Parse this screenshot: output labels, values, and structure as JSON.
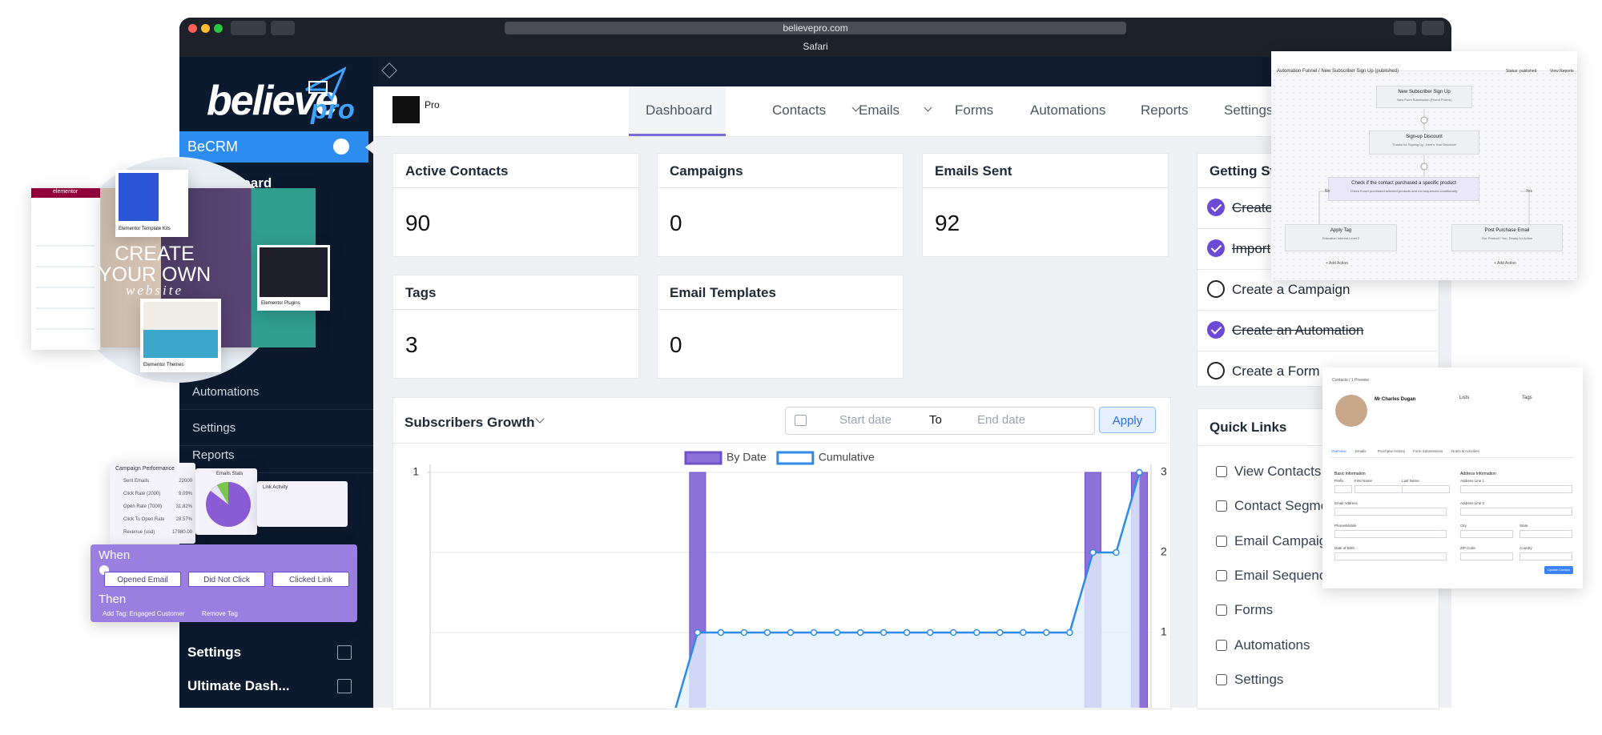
{
  "browser": {
    "url": "believepro.com",
    "app": "Safari"
  },
  "sidebar": {
    "brand_main": "believe",
    "brand_sub": "pro",
    "active": "BeCRM",
    "items": [
      "board",
      "Automations",
      "Settings",
      "Reports"
    ],
    "bottom_items": [
      "Settings",
      "Ultimate Dash..."
    ]
  },
  "topnav": {
    "logo": "Pro",
    "tabs": [
      "Dashboard",
      "Contacts",
      "Emails",
      "Forms",
      "Automations",
      "Reports",
      "Settings"
    ],
    "active_tab": 0
  },
  "stats": [
    {
      "label": "Active Contacts",
      "value": "90"
    },
    {
      "label": "Campaigns",
      "value": "0"
    },
    {
      "label": "Emails Sent",
      "value": "92"
    },
    {
      "label": "Tags",
      "value": "3"
    },
    {
      "label": "Email Templates",
      "value": "0"
    }
  ],
  "getting_started": {
    "title": "Getting Sta",
    "items": [
      {
        "text": "Create",
        "done": true
      },
      {
        "text": "Import",
        "done": true
      },
      {
        "text": "Create a Campaign",
        "done": false
      },
      {
        "text": "Create an Automation",
        "done": true
      },
      {
        "text": "Create a Form",
        "done": false
      }
    ]
  },
  "quick_links": {
    "title": "Quick Links",
    "items": [
      "View Contacts",
      "Contact Segme",
      "Email Campaign",
      "Email Sequence",
      "Forms",
      "Automations",
      "Settings"
    ]
  },
  "chart_controls": {
    "start": "Start date",
    "to": "To",
    "end": "End date",
    "apply": "Apply"
  },
  "chart_data": {
    "type": "combo",
    "title": "Subscribers Growth",
    "categories": [
      null,
      null,
      null,
      null,
      null,
      null,
      null,
      null,
      null,
      null,
      null,
      null,
      null,
      null,
      null,
      null,
      null,
      null,
      null,
      null,
      null,
      null,
      null,
      null,
      null,
      null,
      null,
      null,
      null,
      null,
      null
    ],
    "series": [
      {
        "name": "By Date",
        "type": "bar",
        "axis": "y",
        "color": "#8e72d9",
        "values": [
          0,
          0,
          0,
          0,
          0,
          0,
          0,
          0,
          0,
          0,
          0,
          1,
          0,
          0,
          0,
          0,
          0,
          0,
          0,
          0,
          0,
          0,
          0,
          0,
          0,
          0,
          0,
          0,
          1,
          0,
          1
        ]
      },
      {
        "name": "Cumulative",
        "type": "line",
        "axis": "y2",
        "color": "#2f8ae6",
        "values": [
          0,
          0,
          0,
          0,
          0,
          0,
          0,
          0,
          0,
          0,
          0,
          1,
          1,
          1,
          1,
          1,
          1,
          1,
          1,
          1,
          1,
          1,
          1,
          1,
          1,
          1,
          1,
          1,
          2,
          2,
          3
        ]
      }
    ],
    "ylim": [
      0,
      1
    ],
    "yticks": [
      1
    ],
    "y2lim": [
      0,
      3
    ],
    "y2ticks": [
      1,
      2,
      3
    ],
    "grid": true,
    "legend": "top"
  },
  "elementor": {
    "panel": "elementor",
    "headline": [
      "CREATE",
      "YOUR OWN"
    ],
    "script": "website",
    "kits": "Elementor Template Kits",
    "plugins": "Elementor Plugins",
    "themes": "Elementor Themes"
  },
  "campaign_card": {
    "title": "Campaign Performance",
    "rows": [
      "Sent Emails",
      "Click Rate (2000)",
      "Open Rate (7000)",
      "Click To Open Rate",
      "Revenue (usd)"
    ],
    "values": [
      "22000",
      "9.09%",
      "31.82%",
      "28.57%",
      "17980.00"
    ],
    "pie_title": "Emails Stats",
    "link_title": "Link Activity"
  },
  "trigger": {
    "when": "When",
    "options": [
      "Opened Email",
      "Did Not Click",
      "Clicked Link"
    ],
    "then": "Then",
    "actions": [
      "Add Tag: Engaged Customer",
      "Remove Tag"
    ]
  },
  "funnel": {
    "breadcrumb": "Automation Funnel  /  New Subscriber Sign Up (published)",
    "status": "Status: published",
    "reports": "View Reports",
    "nodes": [
      {
        "title": "New Subscriber Sign Up",
        "sub": "New Form Submission (Fluent Forms)"
      },
      {
        "title": "Sign-up Discount",
        "sub": "Thanks for Signing Up. Here's Your Discount!"
      },
      {
        "title": "Check if the contact purchased a specific product",
        "sub": "Check if user purchased selected products and run sequences conditionally"
      },
      {
        "title": "Apply Tag",
        "sub": "Education Interest Level 2"
      },
      {
        "title": "Post Purchase Email",
        "sub": "Our Product? You, Ready for Action"
      }
    ],
    "no": "No",
    "yes": "Yes",
    "add": "+ Add Action"
  },
  "contact": {
    "crumb": "Contacts  /  1 Preview",
    "name": "Mr Charles Dugan",
    "lists": "Lists",
    "tags": "Tags",
    "tabs": [
      "Overview",
      "Emails",
      "Purchase History",
      "Form Submissions",
      "Notes & Activities"
    ],
    "basic": "Basic Information",
    "address": "Address Information",
    "fields": [
      "Prefix",
      "First Name",
      "Last Name",
      "Email Address",
      "Phone/Mobile",
      "Date of Birth"
    ],
    "addr_fields": [
      "Address Line 1",
      "Address Line 2",
      "City",
      "State",
      "ZIP Code",
      "Country"
    ],
    "update": "Update Contact"
  }
}
